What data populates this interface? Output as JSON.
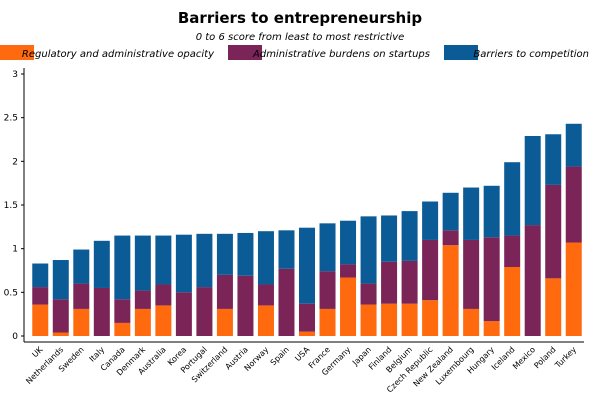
{
  "colors": {
    "regulatory": "#ff6a0e",
    "burdens": "#7a2458",
    "competition": "#0b5c96"
  },
  "chart_data": {
    "type": "bar",
    "stacked": true,
    "title": "Barriers to entrepreneurship",
    "subtitle": "0 to 6 score from least to most restrictive",
    "xlabel": "",
    "ylabel": "",
    "ylim": [
      0,
      3
    ],
    "yticks": [
      "0",
      "0.5",
      "1",
      "1.5",
      "2",
      "2.5",
      "3"
    ],
    "grid": false,
    "legend_position": "top",
    "categories": [
      "UK",
      "Netherlands",
      "Sweden",
      "Italy",
      "Canada",
      "Denmark",
      "Australia",
      "Korea",
      "Portugal",
      "Switzerland",
      "Austria",
      "Norway",
      "Spain",
      "USA",
      "France",
      "Germany",
      "Japan",
      "Finland",
      "Belgium",
      "Czech Republic",
      "New Zealand",
      "Luxembourg",
      "Hungary",
      "Iceland",
      "Mexico",
      "Poland",
      "Turkey"
    ],
    "series": [
      {
        "name": "Regulatory and administrative opacity",
        "color_key": "regulatory",
        "values": [
          0.36,
          0.04,
          0.31,
          0.0,
          0.15,
          0.31,
          0.35,
          0.0,
          0.0,
          0.31,
          0.0,
          0.35,
          0.0,
          0.05,
          0.31,
          0.67,
          0.36,
          0.37,
          0.37,
          0.41,
          1.04,
          0.31,
          0.17,
          0.79,
          0.0,
          0.66,
          1.07
        ]
      },
      {
        "name": "Administrative burdens on startups",
        "color_key": "burdens",
        "values": [
          0.2,
          0.38,
          0.29,
          0.55,
          0.27,
          0.21,
          0.24,
          0.5,
          0.56,
          0.39,
          0.69,
          0.24,
          0.77,
          0.32,
          0.43,
          0.15,
          0.24,
          0.48,
          0.49,
          0.69,
          0.17,
          0.79,
          0.96,
          0.36,
          1.27,
          1.07,
          0.87
        ]
      },
      {
        "name": "Barriers to competition",
        "color_key": "competition",
        "values": [
          0.27,
          0.45,
          0.39,
          0.54,
          0.73,
          0.63,
          0.56,
          0.66,
          0.61,
          0.47,
          0.49,
          0.61,
          0.44,
          0.87,
          0.55,
          0.5,
          0.77,
          0.53,
          0.57,
          0.44,
          0.43,
          0.6,
          0.59,
          0.84,
          1.02,
          0.58,
          0.49
        ]
      }
    ]
  }
}
